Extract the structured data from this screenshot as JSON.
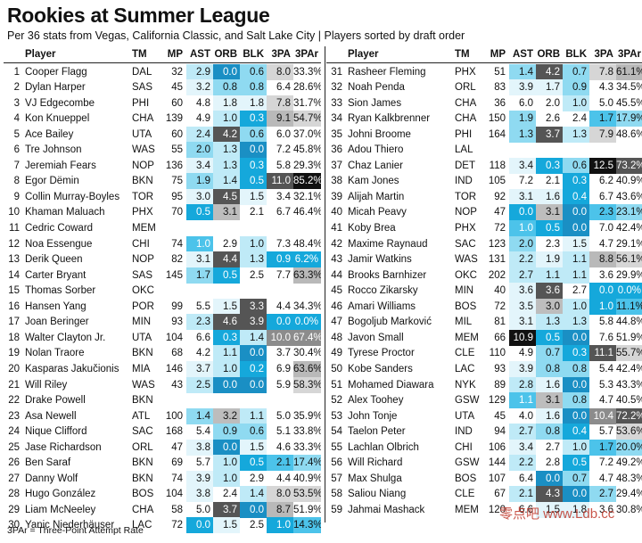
{
  "title": "Rookies at Summer League",
  "subtitle": "Per 36 stats from Vegas, California Classic, and Salt Lake City | Players sorted by draft order",
  "footnote": "3PAr = Three-Point Attempt Rate",
  "watermark": "零点吧 www.Ldb.cc",
  "columns": [
    "",
    "Player",
    "TM",
    "MP",
    "AST",
    "ORB",
    "BLK",
    "3PA",
    "3PAr"
  ],
  "colors": {
    "scale_ast_orb_blk": [
      "#ffffff",
      "#e8f7fc",
      "#bfeaf7",
      "#8fdaf1",
      "#4cc3ea",
      "#15a8db",
      "#1a7fb0"
    ],
    "scale_3pa_3par": [
      "#ffffff",
      "#eeeeee",
      "#d6d6d6",
      "#b9b9b9",
      "#8c8c8c",
      "#555555",
      "#111111"
    ]
  },
  "chart_data": {
    "type": "table",
    "title": "Rookies at Summer League",
    "subtitle": "Per 36 stats from Vegas, California Classic, and Salt Lake City | Players sorted by draft order",
    "columns": [
      "",
      "Player",
      "TM",
      "MP",
      "AST",
      "ORB",
      "BLK",
      "3PA",
      "3PAr"
    ],
    "rows": [
      {
        "rank": "1",
        "player": "Cooper Flagg",
        "tm": "DAL",
        "mp": "32",
        "ast": "2.9",
        "orb": "0.0",
        "blk": "0.6",
        "tpa": "8.0",
        "tpar": "33.3%"
      },
      {
        "rank": "2",
        "player": "Dylan Harper",
        "tm": "SAS",
        "mp": "45",
        "ast": "3.2",
        "orb": "0.8",
        "blk": "0.8",
        "tpa": "6.4",
        "tpar": "28.6%"
      },
      {
        "rank": "3",
        "player": "VJ Edgecombe",
        "tm": "PHI",
        "mp": "60",
        "ast": "4.8",
        "orb": "1.8",
        "blk": "1.8",
        "tpa": "7.8",
        "tpar": "31.7%"
      },
      {
        "rank": "4",
        "player": "Kon Knueppel",
        "tm": "CHA",
        "mp": "139",
        "ast": "4.9",
        "orb": "1.0",
        "blk": "0.3",
        "tpa": "9.1",
        "tpar": "54.7%"
      },
      {
        "rank": "5",
        "player": "Ace Bailey",
        "tm": "UTA",
        "mp": "60",
        "ast": "2.4",
        "orb": "4.2",
        "blk": "0.6",
        "tpa": "6.0",
        "tpar": "37.0%"
      },
      {
        "rank": "6",
        "player": "Tre Johnson",
        "tm": "WAS",
        "mp": "55",
        "ast": "2.0",
        "orb": "1.3",
        "blk": "0.0",
        "tpa": "7.2",
        "tpar": "45.8%"
      },
      {
        "rank": "7",
        "player": "Jeremiah Fears",
        "tm": "NOP",
        "mp": "136",
        "ast": "3.4",
        "orb": "1.3",
        "blk": "0.3",
        "tpa": "5.8",
        "tpar": "29.3%"
      },
      {
        "rank": "8",
        "player": "Egor Dëmin",
        "tm": "BKN",
        "mp": "75",
        "ast": "1.9",
        "orb": "1.4",
        "blk": "0.5",
        "tpa": "11.0",
        "tpar": "85.2%"
      },
      {
        "rank": "9",
        "player": "Collin Murray-Boyles",
        "tm": "TOR",
        "mp": "95",
        "ast": "3.0",
        "orb": "4.5",
        "blk": "1.5",
        "tpa": "3.4",
        "tpar": "32.1%"
      },
      {
        "rank": "10",
        "player": "Khaman Maluach",
        "tm": "PHX",
        "mp": "70",
        "ast": "0.5",
        "orb": "3.1",
        "blk": "2.1",
        "tpa": "6.7",
        "tpar": "46.4%"
      },
      {
        "rank": "11",
        "player": "Cedric Coward",
        "tm": "MEM",
        "mp": "",
        "ast": "",
        "orb": "",
        "blk": "",
        "tpa": "",
        "tpar": ""
      },
      {
        "rank": "12",
        "player": "Noa Essengue",
        "tm": "CHI",
        "mp": "74",
        "ast": "1.0",
        "orb": "2.9",
        "blk": "1.0",
        "tpa": "7.3",
        "tpar": "48.4%"
      },
      {
        "rank": "13",
        "player": "Derik Queen",
        "tm": "NOP",
        "mp": "82",
        "ast": "3.1",
        "orb": "4.4",
        "blk": "1.3",
        "tpa": "0.9",
        "tpar": "6.2%"
      },
      {
        "rank": "14",
        "player": "Carter Bryant",
        "tm": "SAS",
        "mp": "145",
        "ast": "1.7",
        "orb": "0.5",
        "blk": "2.5",
        "tpa": "7.7",
        "tpar": "63.3%"
      },
      {
        "rank": "15",
        "player": "Thomas Sorber",
        "tm": "OKC",
        "mp": "",
        "ast": "",
        "orb": "",
        "blk": "",
        "tpa": "",
        "tpar": ""
      },
      {
        "rank": "16",
        "player": "Hansen Yang",
        "tm": "POR",
        "mp": "99",
        "ast": "5.5",
        "orb": "1.5",
        "blk": "3.3",
        "tpa": "4.4",
        "tpar": "34.3%"
      },
      {
        "rank": "17",
        "player": "Joan Beringer",
        "tm": "MIN",
        "mp": "93",
        "ast": "2.3",
        "orb": "4.6",
        "blk": "3.9",
        "tpa": "0.0",
        "tpar": "0.0%"
      },
      {
        "rank": "18",
        "player": "Walter Clayton Jr.",
        "tm": "UTA",
        "mp": "104",
        "ast": "6.6",
        "orb": "0.3",
        "blk": "1.4",
        "tpa": "10.0",
        "tpar": "67.4%"
      },
      {
        "rank": "19",
        "player": "Nolan Traore",
        "tm": "BKN",
        "mp": "68",
        "ast": "4.2",
        "orb": "1.1",
        "blk": "0.0",
        "tpa": "3.7",
        "tpar": "30.4%"
      },
      {
        "rank": "20",
        "player": "Kasparas Jakučionis",
        "tm": "MIA",
        "mp": "146",
        "ast": "3.7",
        "orb": "1.0",
        "blk": "0.2",
        "tpa": "6.9",
        "tpar": "63.6%"
      },
      {
        "rank": "21",
        "player": "Will Riley",
        "tm": "WAS",
        "mp": "43",
        "ast": "2.5",
        "orb": "0.0",
        "blk": "0.0",
        "tpa": "5.9",
        "tpar": "58.3%"
      },
      {
        "rank": "22",
        "player": "Drake Powell",
        "tm": "BKN",
        "mp": "",
        "ast": "",
        "orb": "",
        "blk": "",
        "tpa": "",
        "tpar": ""
      },
      {
        "rank": "23",
        "player": "Asa Newell",
        "tm": "ATL",
        "mp": "100",
        "ast": "1.4",
        "orb": "3.2",
        "blk": "1.1",
        "tpa": "5.0",
        "tpar": "35.9%"
      },
      {
        "rank": "24",
        "player": "Nique Clifford",
        "tm": "SAC",
        "mp": "168",
        "ast": "5.4",
        "orb": "0.9",
        "blk": "0.6",
        "tpa": "5.1",
        "tpar": "33.8%"
      },
      {
        "rank": "25",
        "player": "Jase Richardson",
        "tm": "ORL",
        "mp": "47",
        "ast": "3.8",
        "orb": "0.0",
        "blk": "1.5",
        "tpa": "4.6",
        "tpar": "33.3%"
      },
      {
        "rank": "26",
        "player": "Ben Saraf",
        "tm": "BKN",
        "mp": "69",
        "ast": "5.7",
        "orb": "1.0",
        "blk": "0.5",
        "tpa": "2.1",
        "tpar": "17.4%"
      },
      {
        "rank": "27",
        "player": "Danny Wolf",
        "tm": "BKN",
        "mp": "74",
        "ast": "3.9",
        "orb": "1.0",
        "blk": "2.9",
        "tpa": "4.4",
        "tpar": "40.9%"
      },
      {
        "rank": "28",
        "player": "Hugo González",
        "tm": "BOS",
        "mp": "104",
        "ast": "3.8",
        "orb": "2.4",
        "blk": "1.4",
        "tpa": "8.0",
        "tpar": "53.5%"
      },
      {
        "rank": "29",
        "player": "Liam McNeeley",
        "tm": "CHA",
        "mp": "58",
        "ast": "5.0",
        "orb": "3.7",
        "blk": "0.0",
        "tpa": "8.7",
        "tpar": "51.9%"
      },
      {
        "rank": "30",
        "player": "Yanic Niederhäuser",
        "tm": "LAC",
        "mp": "72",
        "ast": "0.0",
        "orb": "1.5",
        "blk": "2.5",
        "tpa": "1.0",
        "tpar": "14.3%"
      },
      {
        "rank": "31",
        "player": "Rasheer Fleming",
        "tm": "PHX",
        "mp": "51",
        "ast": "1.4",
        "orb": "4.2",
        "blk": "0.7",
        "tpa": "7.8",
        "tpar": "61.1%"
      },
      {
        "rank": "32",
        "player": "Noah Penda",
        "tm": "ORL",
        "mp": "83",
        "ast": "3.9",
        "orb": "1.7",
        "blk": "0.9",
        "tpa": "4.3",
        "tpar": "34.5%"
      },
      {
        "rank": "33",
        "player": "Sion James",
        "tm": "CHA",
        "mp": "36",
        "ast": "6.0",
        "orb": "2.0",
        "blk": "1.0",
        "tpa": "5.0",
        "tpar": "45.5%"
      },
      {
        "rank": "34",
        "player": "Ryan Kalkbrenner",
        "tm": "CHA",
        "mp": "150",
        "ast": "1.9",
        "orb": "2.6",
        "blk": "2.4",
        "tpa": "1.7",
        "tpar": "17.9%"
      },
      {
        "rank": "35",
        "player": "Johni Broome",
        "tm": "PHI",
        "mp": "164",
        "ast": "1.3",
        "orb": "3.7",
        "blk": "1.3",
        "tpa": "7.9",
        "tpar": "48.6%"
      },
      {
        "rank": "36",
        "player": "Adou Thiero",
        "tm": "LAL",
        "mp": "",
        "ast": "",
        "orb": "",
        "blk": "",
        "tpa": "",
        "tpar": ""
      },
      {
        "rank": "37",
        "player": "Chaz Lanier",
        "tm": "DET",
        "mp": "118",
        "ast": "3.4",
        "orb": "0.3",
        "blk": "0.6",
        "tpa": "12.5",
        "tpar": "73.2%"
      },
      {
        "rank": "38",
        "player": "Kam Jones",
        "tm": "IND",
        "mp": "105",
        "ast": "7.2",
        "orb": "2.1",
        "blk": "0.3",
        "tpa": "6.2",
        "tpar": "40.9%"
      },
      {
        "rank": "39",
        "player": "Alijah Martin",
        "tm": "TOR",
        "mp": "92",
        "ast": "3.1",
        "orb": "1.6",
        "blk": "0.4",
        "tpa": "6.7",
        "tpar": "43.6%"
      },
      {
        "rank": "40",
        "player": "Micah Peavy",
        "tm": "NOP",
        "mp": "47",
        "ast": "0.0",
        "orb": "3.1",
        "blk": "0.0",
        "tpa": "2.3",
        "tpar": "23.1%"
      },
      {
        "rank": "41",
        "player": "Koby Brea",
        "tm": "PHX",
        "mp": "72",
        "ast": "1.0",
        "orb": "0.5",
        "blk": "0.0",
        "tpa": "7.0",
        "tpar": "42.4%"
      },
      {
        "rank": "42",
        "player": "Maxime Raynaud",
        "tm": "SAC",
        "mp": "123",
        "ast": "2.0",
        "orb": "2.3",
        "blk": "1.5",
        "tpa": "4.7",
        "tpar": "29.1%"
      },
      {
        "rank": "43",
        "player": "Jamir Watkins",
        "tm": "WAS",
        "mp": "131",
        "ast": "2.2",
        "orb": "1.9",
        "blk": "1.1",
        "tpa": "8.8",
        "tpar": "56.1%"
      },
      {
        "rank": "44",
        "player": "Brooks Barnhizer",
        "tm": "OKC",
        "mp": "202",
        "ast": "2.7",
        "orb": "1.1",
        "blk": "1.1",
        "tpa": "3.6",
        "tpar": "29.9%"
      },
      {
        "rank": "45",
        "player": "Rocco Zikarsky",
        "tm": "MIN",
        "mp": "40",
        "ast": "3.6",
        "orb": "3.6",
        "blk": "2.7",
        "tpa": "0.0",
        "tpar": "0.0%"
      },
      {
        "rank": "46",
        "player": "Amari Williams",
        "tm": "BOS",
        "mp": "72",
        "ast": "3.5",
        "orb": "3.0",
        "blk": "1.0",
        "tpa": "1.0",
        "tpar": "11.1%"
      },
      {
        "rank": "47",
        "player": "Bogoljub Marković",
        "tm": "MIL",
        "mp": "81",
        "ast": "3.1",
        "orb": "1.3",
        "blk": "1.3",
        "tpa": "5.8",
        "tpar": "44.8%"
      },
      {
        "rank": "48",
        "player": "Javon Small",
        "tm": "MEM",
        "mp": "66",
        "ast": "10.9",
        "orb": "0.5",
        "blk": "0.0",
        "tpa": "7.6",
        "tpar": "51.9%"
      },
      {
        "rank": "49",
        "player": "Tyrese Proctor",
        "tm": "CLE",
        "mp": "110",
        "ast": "4.9",
        "orb": "0.7",
        "blk": "0.3",
        "tpa": "11.1",
        "tpar": "55.7%"
      },
      {
        "rank": "50",
        "player": "Kobe Sanders",
        "tm": "LAC",
        "mp": "93",
        "ast": "3.9",
        "orb": "0.8",
        "blk": "0.8",
        "tpa": "5.4",
        "tpar": "42.4%"
      },
      {
        "rank": "51",
        "player": "Mohamed Diawara",
        "tm": "NYK",
        "mp": "89",
        "ast": "2.8",
        "orb": "1.6",
        "blk": "0.0",
        "tpa": "5.3",
        "tpar": "43.3%"
      },
      {
        "rank": "52",
        "player": "Alex Toohey",
        "tm": "GSW",
        "mp": "129",
        "ast": "1.1",
        "orb": "3.1",
        "blk": "0.8",
        "tpa": "4.7",
        "tpar": "40.5%"
      },
      {
        "rank": "53",
        "player": "John Tonje",
        "tm": "UTA",
        "mp": "45",
        "ast": "4.0",
        "orb": "1.6",
        "blk": "0.0",
        "tpa": "10.4",
        "tpar": "72.2%"
      },
      {
        "rank": "54",
        "player": "Taelon Peter",
        "tm": "IND",
        "mp": "94",
        "ast": "2.7",
        "orb": "0.8",
        "blk": "0.4",
        "tpa": "5.7",
        "tpar": "53.6%"
      },
      {
        "rank": "55",
        "player": "Lachlan Olbrich",
        "tm": "CHI",
        "mp": "106",
        "ast": "3.4",
        "orb": "2.7",
        "blk": "1.0",
        "tpa": "1.7",
        "tpar": "20.0%"
      },
      {
        "rank": "56",
        "player": "Will Richard",
        "tm": "GSW",
        "mp": "144",
        "ast": "2.2",
        "orb": "2.8",
        "blk": "0.5",
        "tpa": "7.2",
        "tpar": "49.2%"
      },
      {
        "rank": "57",
        "player": "Max Shulga",
        "tm": "BOS",
        "mp": "107",
        "ast": "6.4",
        "orb": "0.0",
        "blk": "0.7",
        "tpa": "4.7",
        "tpar": "48.3%"
      },
      {
        "rank": "58",
        "player": "Saliou Niang",
        "tm": "CLE",
        "mp": "67",
        "ast": "2.1",
        "orb": "4.3",
        "blk": "0.0",
        "tpa": "2.7",
        "tpar": "29.4%"
      },
      {
        "rank": "59",
        "player": "Jahmai Mashack",
        "tm": "MEM",
        "mp": "120",
        "ast": "6.6",
        "orb": "1.5",
        "blk": "1.8",
        "tpa": "3.6",
        "tpar": "30.8%"
      }
    ]
  }
}
